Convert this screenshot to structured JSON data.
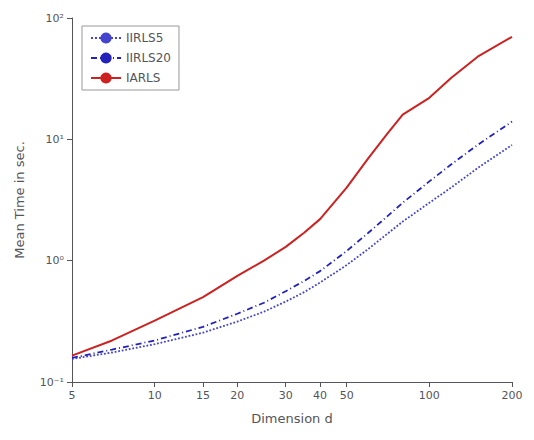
{
  "chart_data": {
    "type": "line",
    "xlabel": "Dimension d",
    "ylabel": "Mean Time in sec.",
    "x": [
      5,
      7,
      10,
      15,
      20,
      25,
      30,
      35,
      40,
      50,
      60,
      70,
      80,
      100,
      120,
      150,
      200
    ],
    "series": [
      {
        "name": "IIRLS5",
        "color": "#4444cc",
        "line_style": "dotted",
        "values": [
          0.155,
          0.175,
          0.205,
          0.255,
          0.315,
          0.38,
          0.46,
          0.55,
          0.66,
          0.92,
          1.25,
          1.65,
          2.1,
          3.0,
          4.0,
          5.8,
          9.0
        ]
      },
      {
        "name": "IIRLS20",
        "color": "#2222bb",
        "line_style": "dashdot",
        "values": [
          0.158,
          0.185,
          0.22,
          0.285,
          0.365,
          0.45,
          0.56,
          0.68,
          0.82,
          1.2,
          1.7,
          2.3,
          3.0,
          4.5,
          6.2,
          9.0,
          14.0
        ]
      },
      {
        "name": "IARLS",
        "color": "#cc2222",
        "line_style": "solid",
        "values": [
          0.165,
          0.22,
          0.32,
          0.5,
          0.75,
          1.0,
          1.3,
          1.7,
          2.2,
          4.0,
          7.0,
          11.0,
          16.0,
          22.0,
          32.0,
          48.0,
          70.0
        ]
      }
    ],
    "log": true,
    "xlim": [
      5,
      200
    ],
    "ylim": [
      0.1,
      100
    ],
    "xticks": [
      5,
      10,
      15,
      20,
      30,
      40,
      50,
      100,
      200
    ],
    "yticks": [
      {
        "value": 0.1,
        "label": "10⁻¹"
      },
      {
        "value": 1,
        "label": "10⁰"
      },
      {
        "value": 10,
        "label": "10¹"
      },
      {
        "value": 100,
        "label": "10²"
      }
    ],
    "grid": false,
    "legend": "upper left"
  }
}
